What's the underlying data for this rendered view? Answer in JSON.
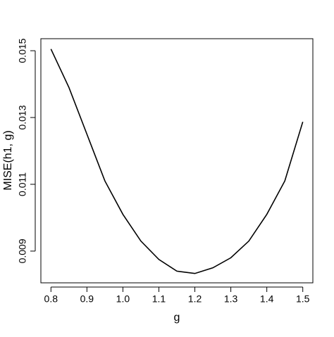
{
  "chart_data": {
    "type": "line",
    "x_label": "g",
    "y_label": "MISE(h1, g)",
    "x": [
      0.8,
      0.85,
      0.9,
      0.95,
      1.0,
      1.05,
      1.1,
      1.15,
      1.2,
      1.25,
      1.3,
      1.35,
      1.4,
      1.45,
      1.5
    ],
    "series": [
      {
        "color": "#000000",
        "values": [
          0.01505,
          0.0139,
          0.0125,
          0.0111,
          0.0101,
          0.0093,
          0.00875,
          0.0084,
          0.00833,
          0.0085,
          0.0088,
          0.0093,
          0.0101,
          0.0111,
          0.01287
        ]
      }
    ],
    "xlim": [
      0.772,
      1.528
    ],
    "ylim": [
      0.00805,
      0.01536
    ],
    "xticks": [
      0.8,
      0.9,
      {
        "value": 1.0,
        "label": "1.0"
      },
      1.1,
      1.2,
      1.3,
      1.4,
      1.5
    ],
    "yticks": [
      0.009,
      0.011,
      0.013,
      0.015
    ]
  }
}
